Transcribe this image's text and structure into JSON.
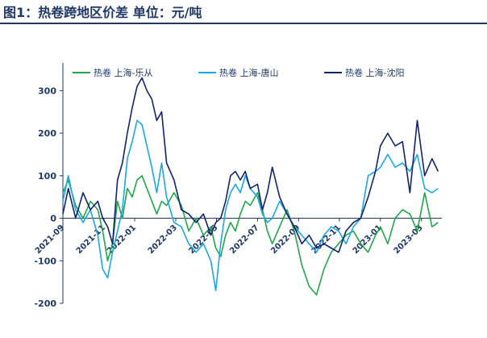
{
  "header": {
    "title": "图1：热卷跨地区价差   单位：元/吨"
  },
  "colors": {
    "title": "#1f3864",
    "axis": "#1f3864",
    "series": [
      "#1fa74a",
      "#19a8e3",
      "#12236b"
    ]
  },
  "chart_data": {
    "type": "line",
    "title": "图1：热卷跨地区价差   单位：元/吨",
    "xlabel": "",
    "ylabel": "元/吨",
    "ylim": [
      -200,
      350
    ],
    "yticks": [
      -200,
      -100,
      0,
      100,
      200,
      300
    ],
    "xlim": [
      2021.708,
      2023.25
    ],
    "xticks": [
      {
        "value": 2021.708,
        "label": "2021-09"
      },
      {
        "value": 2021.875,
        "label": "2021-11"
      },
      {
        "value": 2022.0,
        "label": "2022-01"
      },
      {
        "value": 2022.167,
        "label": "2022-03"
      },
      {
        "value": 2022.333,
        "label": "2022-05"
      },
      {
        "value": 2022.5,
        "label": "2022-07"
      },
      {
        "value": 2022.667,
        "label": "2022-09"
      },
      {
        "value": 2022.833,
        "label": "2022-11"
      },
      {
        "value": 2023.0,
        "label": "2023-01"
      },
      {
        "value": 2023.167,
        "label": "2023-03"
      }
    ],
    "legend_position": "top",
    "series": [
      {
        "name": "热卷 上海-乐从",
        "x": [
          2021.708,
          2021.73,
          2021.76,
          2021.79,
          2021.82,
          2021.85,
          2021.87,
          2021.89,
          2021.91,
          2021.93,
          2021.95,
          2021.97,
          2021.99,
          2022.01,
          2022.03,
          2022.05,
          2022.07,
          2022.09,
          2022.11,
          2022.13,
          2022.16,
          2022.19,
          2022.22,
          2022.25,
          2022.28,
          2022.31,
          2022.33,
          2022.35,
          2022.37,
          2022.39,
          2022.41,
          2022.43,
          2022.45,
          2022.47,
          2022.5,
          2022.52,
          2022.54,
          2022.56,
          2022.59,
          2022.62,
          2022.65,
          2022.68,
          2022.71,
          2022.74,
          2022.77,
          2022.8,
          2022.83,
          2022.86,
          2022.89,
          2022.92,
          2022.95,
          2022.98,
          2023.0,
          2023.03,
          2023.06,
          2023.09,
          2023.12,
          2023.15,
          2023.18,
          2023.21,
          2023.235
        ],
        "values": [
          60,
          90,
          30,
          0,
          40,
          20,
          -30,
          -100,
          -60,
          40,
          0,
          70,
          50,
          90,
          100,
          70,
          40,
          10,
          40,
          30,
          60,
          30,
          -30,
          0,
          -40,
          -20,
          -70,
          -90,
          -40,
          -10,
          -30,
          10,
          40,
          30,
          60,
          20,
          -30,
          -60,
          -20,
          20,
          -30,
          -110,
          -160,
          -180,
          -120,
          -80,
          -60,
          -40,
          -30,
          -60,
          -80,
          -40,
          -20,
          -60,
          0,
          20,
          10,
          -30,
          60,
          -20,
          -10
        ]
      },
      {
        "name": "热卷 上海-唐山",
        "x": [
          2021.708,
          2021.73,
          2021.76,
          2021.79,
          2021.82,
          2021.85,
          2021.87,
          2021.89,
          2021.91,
          2021.93,
          2021.95,
          2021.97,
          2021.99,
          2022.01,
          2022.03,
          2022.05,
          2022.07,
          2022.09,
          2022.11,
          2022.13,
          2022.16,
          2022.19,
          2022.22,
          2022.25,
          2022.28,
          2022.31,
          2022.33,
          2022.35,
          2022.37,
          2022.39,
          2022.41,
          2022.43,
          2022.45,
          2022.47,
          2022.5,
          2022.52,
          2022.54,
          2022.56,
          2022.59,
          2022.62,
          2022.65,
          2022.68,
          2022.71,
          2022.74,
          2022.77,
          2022.8,
          2022.83,
          2022.86,
          2022.89,
          2022.92,
          2022.95,
          2022.98,
          2023.0,
          2023.03,
          2023.06,
          2023.09,
          2023.12,
          2023.15,
          2023.18,
          2023.21,
          2023.235
        ],
        "values": [
          40,
          100,
          20,
          -10,
          20,
          -40,
          -120,
          -140,
          -80,
          -30,
          20,
          140,
          180,
          230,
          220,
          170,
          120,
          60,
          130,
          50,
          -10,
          -20,
          -60,
          -80,
          -60,
          -100,
          -170,
          -60,
          20,
          60,
          80,
          60,
          100,
          70,
          50,
          10,
          -10,
          0,
          40,
          10,
          -20,
          -40,
          -60,
          -80,
          -40,
          -20,
          -30,
          -60,
          -20,
          0,
          100,
          110,
          120,
          150,
          120,
          130,
          110,
          150,
          70,
          60,
          70
        ]
      },
      {
        "name": "热卷 上海-沈阳",
        "x": [
          2021.708,
          2021.73,
          2021.76,
          2021.79,
          2021.82,
          2021.85,
          2021.87,
          2021.89,
          2021.91,
          2021.93,
          2021.95,
          2021.97,
          2021.99,
          2022.01,
          2022.03,
          2022.05,
          2022.07,
          2022.09,
          2022.11,
          2022.13,
          2022.16,
          2022.19,
          2022.22,
          2022.25,
          2022.28,
          2022.31,
          2022.33,
          2022.35,
          2022.37,
          2022.39,
          2022.41,
          2022.43,
          2022.45,
          2022.47,
          2022.5,
          2022.52,
          2022.54,
          2022.56,
          2022.59,
          2022.62,
          2022.65,
          2022.68,
          2022.71,
          2022.74,
          2022.77,
          2022.8,
          2022.83,
          2022.86,
          2022.89,
          2022.92,
          2022.95,
          2022.98,
          2023.0,
          2023.03,
          2023.06,
          2023.09,
          2023.12,
          2023.15,
          2023.18,
          2023.21,
          2023.235
        ],
        "values": [
          10,
          70,
          0,
          60,
          20,
          40,
          0,
          -20,
          -60,
          90,
          130,
          200,
          260,
          310,
          330,
          300,
          280,
          230,
          250,
          130,
          90,
          20,
          10,
          -10,
          10,
          -40,
          -10,
          0,
          40,
          100,
          110,
          90,
          110,
          70,
          80,
          20,
          60,
          120,
          50,
          10,
          -20,
          -60,
          -40,
          -70,
          -60,
          -70,
          -80,
          -30,
          -10,
          0,
          50,
          110,
          170,
          200,
          170,
          180,
          60,
          230,
          100,
          140,
          110
        ]
      }
    ]
  }
}
